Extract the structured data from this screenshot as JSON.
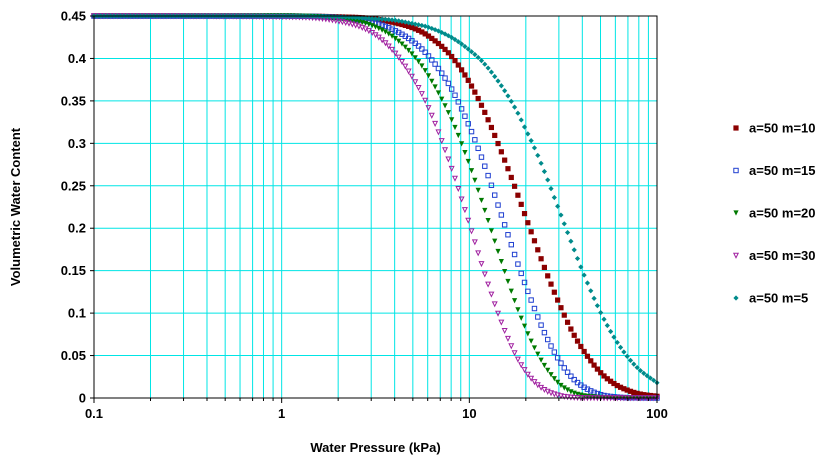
{
  "chart_data": {
    "type": "scatter",
    "title": "",
    "xlabel": "Water Pressure (kPa)",
    "ylabel": "Volumetric Water Content",
    "x_scale": "log",
    "xlim": [
      0.1,
      100
    ],
    "ylim": [
      0,
      0.45
    ],
    "x_ticks": [
      "0.1",
      "1",
      "10",
      "100"
    ],
    "y_ticks": [
      "0",
      "0.05",
      "0.1",
      "0.15",
      "0.2",
      "0.25",
      "0.3",
      "0.35",
      "0.4",
      "0.45"
    ],
    "grid": true,
    "grid_color": "#00e5e5",
    "legend_position": "right",
    "series": [
      {
        "name": "a=50 m=10",
        "marker": "square-filled",
        "color": "#8b0000",
        "x": [
          0.1,
          1,
          2,
          3,
          4,
          5,
          6,
          8,
          10,
          12,
          15,
          18,
          20,
          22,
          25,
          30,
          35,
          40,
          50,
          60,
          70,
          80,
          100
        ],
        "y": [
          0.45,
          0.45,
          0.449,
          0.447,
          0.442,
          0.436,
          0.427,
          0.403,
          0.372,
          0.338,
          0.287,
          0.241,
          0.213,
          0.188,
          0.155,
          0.112,
          0.08,
          0.058,
          0.03,
          0.016,
          0.009,
          0.005,
          0.002
        ]
      },
      {
        "name": "a=50 m=15",
        "marker": "square-open",
        "color": "#1f3fd0",
        "x": [
          0.1,
          1,
          2,
          3,
          4,
          5,
          6,
          8,
          10,
          12,
          15,
          18,
          20,
          22,
          25,
          30,
          35,
          40,
          50,
          60,
          70,
          80,
          100
        ],
        "y": [
          0.45,
          0.45,
          0.448,
          0.443,
          0.433,
          0.42,
          0.404,
          0.365,
          0.32,
          0.275,
          0.212,
          0.16,
          0.132,
          0.108,
          0.078,
          0.045,
          0.025,
          0.014,
          0.004,
          0.0013,
          0.0004,
          0.0002,
          0
        ]
      },
      {
        "name": "a=50 m=20",
        "marker": "triangle-filled",
        "color": "#007a00",
        "x": [
          0.1,
          1,
          2,
          3,
          4,
          5,
          6,
          8,
          10,
          12,
          15,
          18,
          20,
          22,
          25,
          30,
          35,
          40,
          50,
          60,
          70,
          80,
          100
        ],
        "y": [
          0.45,
          0.45,
          0.447,
          0.439,
          0.424,
          0.404,
          0.381,
          0.329,
          0.275,
          0.223,
          0.157,
          0.106,
          0.081,
          0.061,
          0.039,
          0.017,
          0.007,
          0.003,
          0.0006,
          0.0001,
          0,
          0,
          0
        ]
      },
      {
        "name": "a=50 m=30",
        "marker": "triangle-open",
        "color": "#a020a0",
        "x": [
          0.1,
          1,
          2,
          3,
          4,
          5,
          6,
          8,
          10,
          12,
          15,
          18,
          20,
          22,
          25,
          30,
          35,
          40,
          50,
          60,
          70,
          80,
          100
        ],
        "y": [
          0.45,
          0.449,
          0.444,
          0.431,
          0.407,
          0.377,
          0.344,
          0.272,
          0.205,
          0.148,
          0.086,
          0.047,
          0.031,
          0.02,
          0.01,
          0.003,
          0.0008,
          0.0002,
          0,
          0,
          0,
          0,
          0
        ]
      },
      {
        "name": "a=50 m=5",
        "marker": "diamond-filled",
        "color": "#008b8b",
        "x": [
          0.1,
          1,
          2,
          3,
          4,
          5,
          6,
          8,
          10,
          12,
          15,
          18,
          20,
          22,
          25,
          30,
          35,
          40,
          50,
          60,
          70,
          80,
          100
        ],
        "y": [
          0.45,
          0.45,
          0.449,
          0.447,
          0.445,
          0.441,
          0.437,
          0.425,
          0.41,
          0.394,
          0.366,
          0.337,
          0.316,
          0.297,
          0.268,
          0.222,
          0.183,
          0.15,
          0.101,
          0.069,
          0.048,
          0.034,
          0.018
        ]
      }
    ]
  }
}
